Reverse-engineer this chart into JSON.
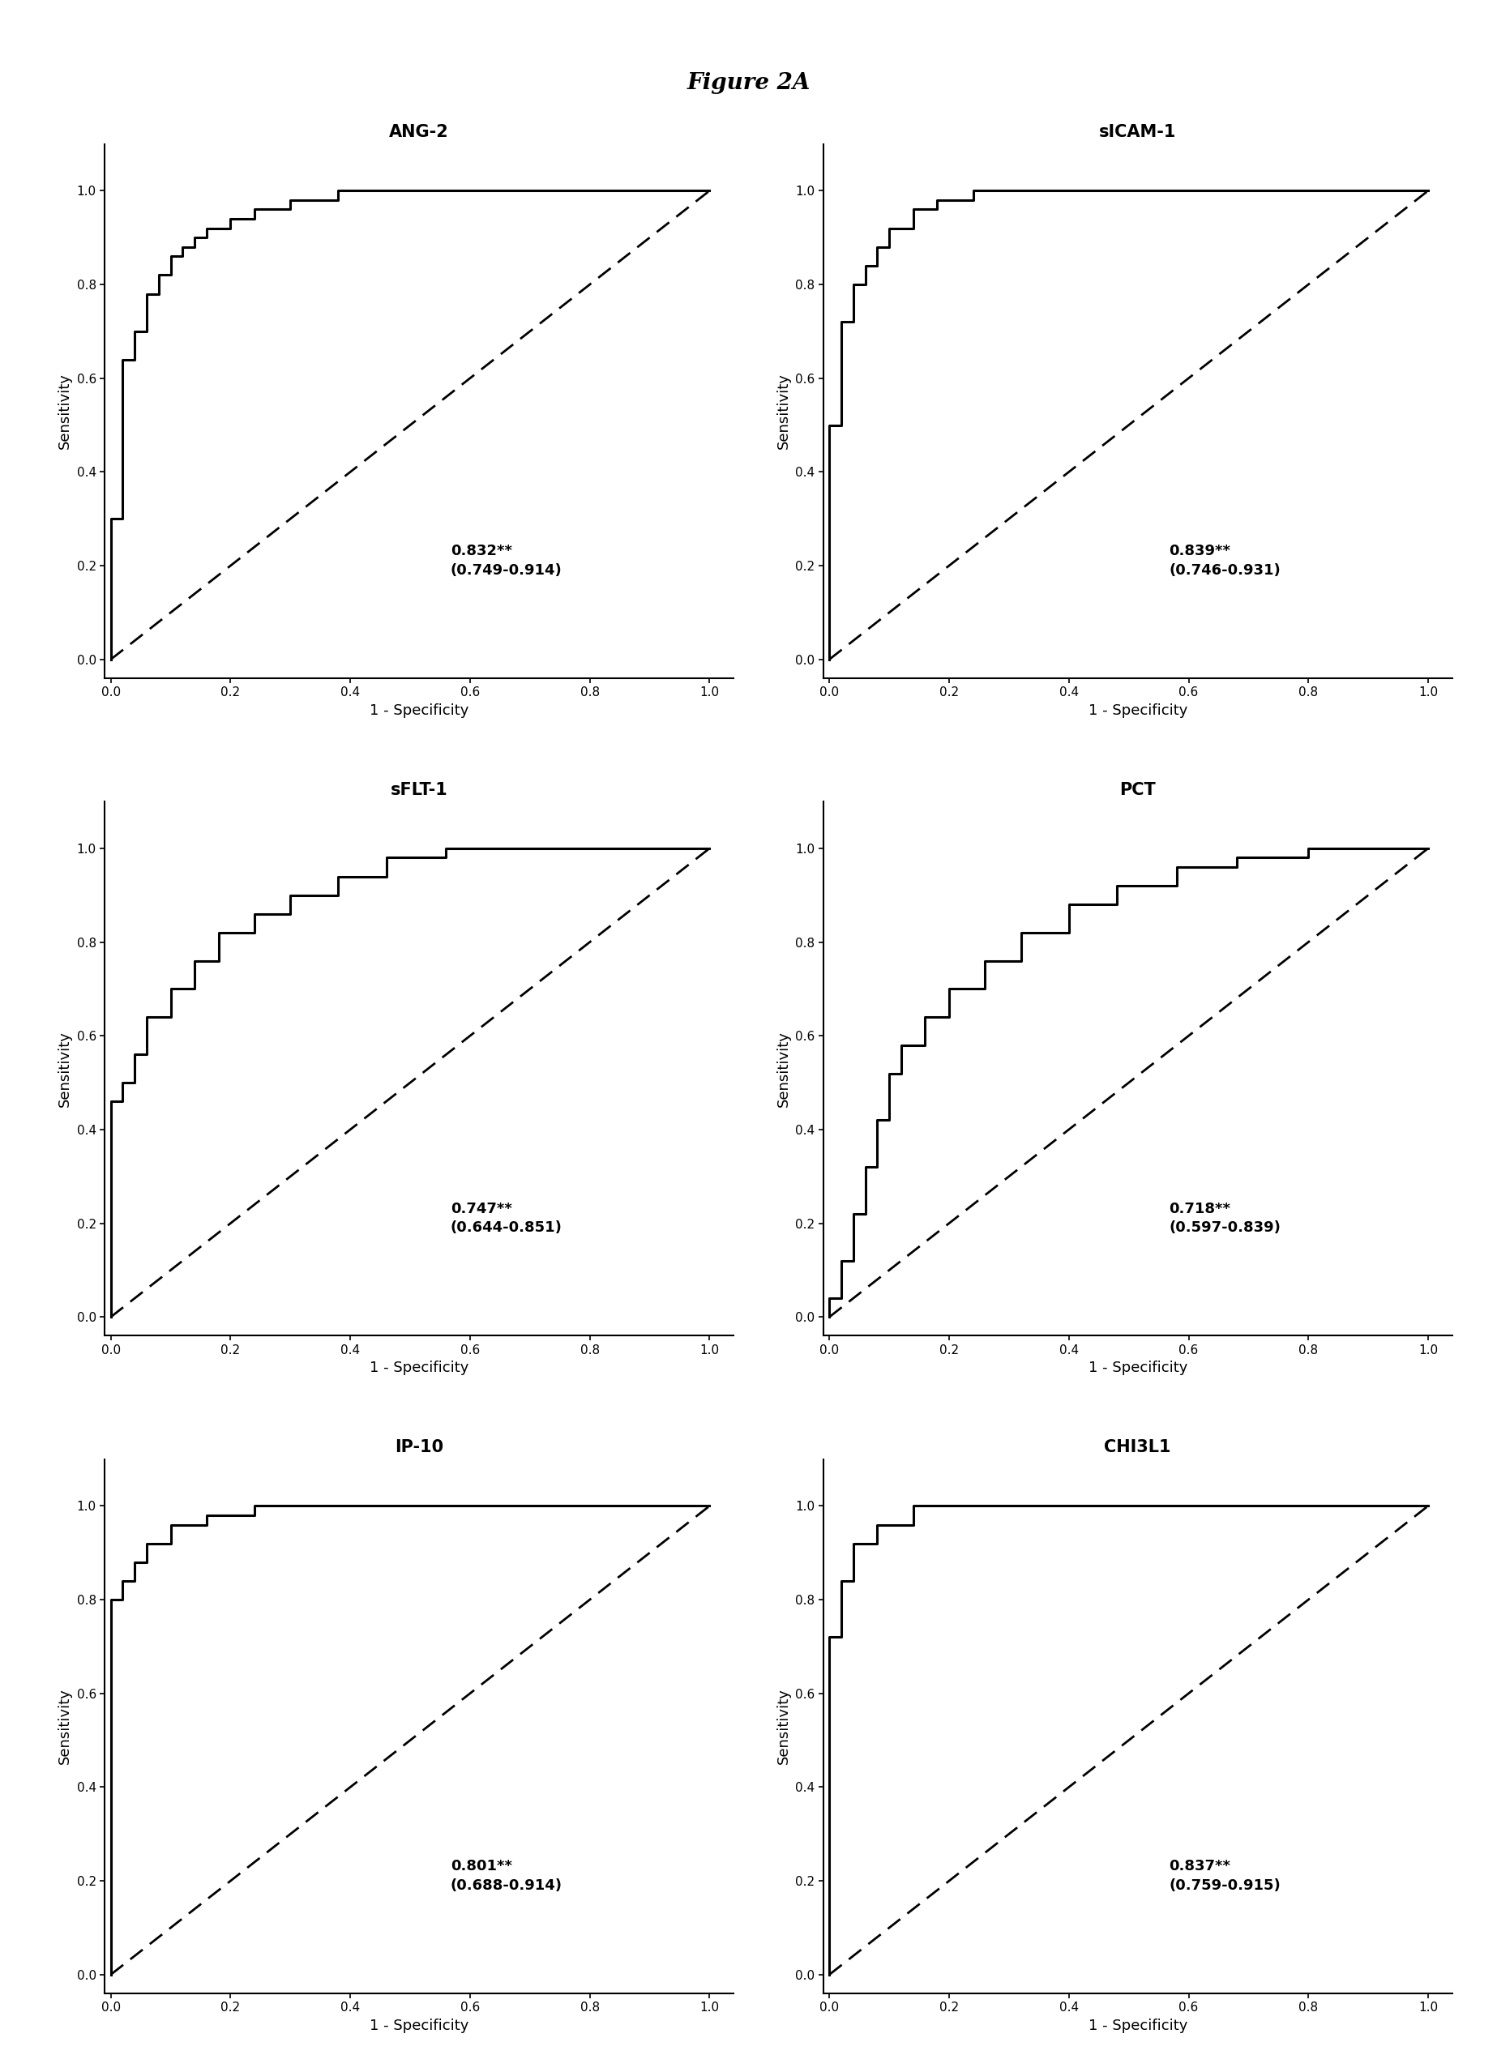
{
  "figure_title": "Figure 2A",
  "figure_title_fontsize": 20,
  "subplots": [
    {
      "title": "ANG-2",
      "auc_text": "0.832**\n(0.749-0.914)",
      "roc_x": [
        0.0,
        0.0,
        0.0,
        0.0,
        0.0,
        0.02,
        0.02,
        0.02,
        0.02,
        0.04,
        0.04,
        0.06,
        0.06,
        0.06,
        0.08,
        0.08,
        0.1,
        0.1,
        0.12,
        0.12,
        0.14,
        0.14,
        0.16,
        0.16,
        0.2,
        0.2,
        0.24,
        0.24,
        0.3,
        0.3,
        0.38,
        0.38,
        0.48,
        0.48,
        0.6,
        0.6,
        0.74,
        0.74,
        1.0
      ],
      "roc_y": [
        0.0,
        0.06,
        0.14,
        0.22,
        0.3,
        0.3,
        0.42,
        0.54,
        0.64,
        0.64,
        0.7,
        0.7,
        0.74,
        0.78,
        0.78,
        0.82,
        0.82,
        0.86,
        0.86,
        0.88,
        0.88,
        0.9,
        0.9,
        0.92,
        0.92,
        0.94,
        0.94,
        0.96,
        0.96,
        0.98,
        0.98,
        1.0,
        1.0,
        1.0,
        1.0,
        1.0,
        1.0,
        1.0,
        1.0
      ]
    },
    {
      "title": "sICAM-1",
      "auc_text": "0.839**\n(0.746-0.931)",
      "roc_x": [
        0.0,
        0.0,
        0.0,
        0.0,
        0.02,
        0.02,
        0.02,
        0.04,
        0.04,
        0.06,
        0.06,
        0.08,
        0.08,
        0.1,
        0.1,
        0.14,
        0.14,
        0.18,
        0.18,
        0.24,
        0.24,
        0.32,
        0.32,
        0.42,
        0.42,
        0.54,
        0.54,
        0.68,
        0.68,
        1.0
      ],
      "roc_y": [
        0.0,
        0.08,
        0.28,
        0.5,
        0.5,
        0.62,
        0.72,
        0.72,
        0.8,
        0.8,
        0.84,
        0.84,
        0.88,
        0.88,
        0.92,
        0.92,
        0.96,
        0.96,
        0.98,
        0.98,
        1.0,
        1.0,
        1.0,
        1.0,
        1.0,
        1.0,
        1.0,
        1.0,
        1.0,
        1.0
      ]
    },
    {
      "title": "sFLT-1",
      "auc_text": "0.747**\n(0.644-0.851)",
      "roc_x": [
        0.0,
        0.0,
        0.0,
        0.02,
        0.02,
        0.04,
        0.04,
        0.06,
        0.06,
        0.1,
        0.1,
        0.14,
        0.14,
        0.18,
        0.18,
        0.24,
        0.24,
        0.3,
        0.3,
        0.38,
        0.38,
        0.46,
        0.46,
        0.56,
        0.56,
        0.66,
        0.66,
        0.78,
        0.78,
        0.9,
        0.9,
        1.0
      ],
      "roc_y": [
        0.0,
        0.1,
        0.46,
        0.46,
        0.5,
        0.5,
        0.56,
        0.56,
        0.64,
        0.64,
        0.7,
        0.7,
        0.76,
        0.76,
        0.82,
        0.82,
        0.86,
        0.86,
        0.9,
        0.9,
        0.94,
        0.94,
        0.98,
        0.98,
        1.0,
        1.0,
        1.0,
        1.0,
        1.0,
        1.0,
        1.0,
        1.0
      ]
    },
    {
      "title": "PCT",
      "auc_text": "0.718**\n(0.597-0.839)",
      "roc_x": [
        0.0,
        0.0,
        0.02,
        0.02,
        0.04,
        0.04,
        0.06,
        0.06,
        0.08,
        0.08,
        0.1,
        0.1,
        0.12,
        0.12,
        0.16,
        0.16,
        0.2,
        0.2,
        0.26,
        0.26,
        0.32,
        0.32,
        0.4,
        0.4,
        0.48,
        0.48,
        0.58,
        0.58,
        0.68,
        0.68,
        0.8,
        0.8,
        0.9,
        0.9,
        1.0
      ],
      "roc_y": [
        0.0,
        0.04,
        0.04,
        0.12,
        0.12,
        0.22,
        0.22,
        0.32,
        0.32,
        0.42,
        0.42,
        0.52,
        0.52,
        0.58,
        0.58,
        0.64,
        0.64,
        0.7,
        0.7,
        0.76,
        0.76,
        0.82,
        0.82,
        0.88,
        0.88,
        0.92,
        0.92,
        0.96,
        0.96,
        0.98,
        0.98,
        1.0,
        1.0,
        1.0,
        1.0
      ]
    },
    {
      "title": "IP-10",
      "auc_text": "0.801**\n(0.688-0.914)",
      "roc_x": [
        0.0,
        0.0,
        0.0,
        0.0,
        0.02,
        0.02,
        0.04,
        0.04,
        0.06,
        0.06,
        0.1,
        0.1,
        0.16,
        0.16,
        0.24,
        0.24,
        0.34,
        0.34,
        0.46,
        0.46,
        0.6,
        0.6,
        0.74,
        0.74,
        0.88,
        0.88,
        1.0
      ],
      "roc_y": [
        0.0,
        0.18,
        0.6,
        0.8,
        0.8,
        0.84,
        0.84,
        0.88,
        0.88,
        0.92,
        0.92,
        0.96,
        0.96,
        0.98,
        0.98,
        1.0,
        1.0,
        1.0,
        1.0,
        1.0,
        1.0,
        1.0,
        1.0,
        1.0,
        1.0,
        1.0,
        1.0
      ]
    },
    {
      "title": "CHI3L1",
      "auc_text": "0.837**\n(0.759-0.915)",
      "roc_x": [
        0.0,
        0.0,
        0.0,
        0.0,
        0.02,
        0.02,
        0.04,
        0.04,
        0.08,
        0.08,
        0.14,
        0.14,
        0.22,
        0.22,
        0.34,
        0.34,
        0.48,
        0.48,
        0.64,
        0.64,
        0.8,
        0.8,
        1.0
      ],
      "roc_y": [
        0.0,
        0.12,
        0.52,
        0.72,
        0.72,
        0.84,
        0.84,
        0.92,
        0.92,
        0.96,
        0.96,
        1.0,
        1.0,
        1.0,
        1.0,
        1.0,
        1.0,
        1.0,
        1.0,
        1.0,
        1.0,
        1.0,
        1.0
      ]
    }
  ],
  "line_color": "#000000",
  "line_width": 2.2,
  "diag_linewidth": 2.0,
  "xlabel": "1 - Specificity",
  "ylabel": "Sensitivity",
  "tick_fontsize": 11,
  "label_fontsize": 13,
  "title_fontsize": 15,
  "auc_fontsize": 13,
  "background_color": "#ffffff",
  "xticks": [
    0.0,
    0.2,
    0.4,
    0.6,
    0.8,
    1.0
  ],
  "yticks": [
    0.0,
    0.2,
    0.4,
    0.6,
    0.8,
    1.0
  ],
  "xlim": [
    -0.01,
    1.04
  ],
  "ylim": [
    -0.04,
    1.1
  ]
}
